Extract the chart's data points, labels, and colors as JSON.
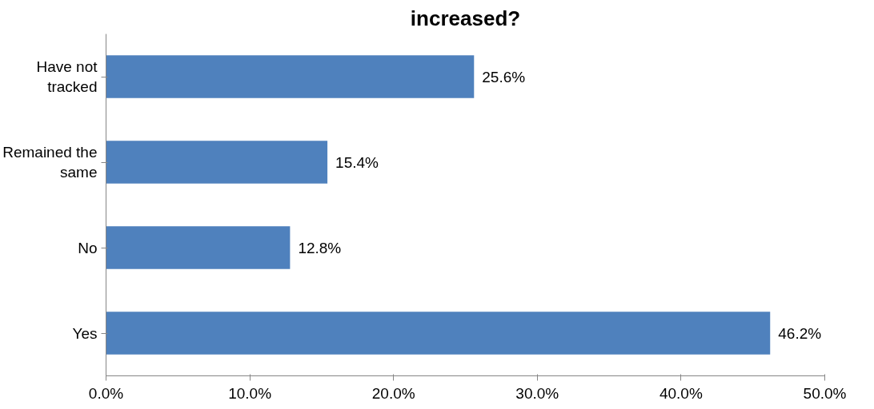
{
  "chart_data": {
    "type": "bar",
    "orientation": "horizontal",
    "title": "increased?",
    "categories": [
      "Have not tracked",
      "Remained the same",
      "No",
      "Yes"
    ],
    "values": [
      25.6,
      15.4,
      12.8,
      46.2
    ],
    "color": "#4f81bd",
    "value_labels": [
      "25.6%",
      "15.4%",
      "12.8%",
      "46.2%"
    ],
    "xlim": [
      0,
      50
    ],
    "xticks": [
      {
        "value": 0,
        "label": "0.0%"
      },
      {
        "value": 10,
        "label": "10.0%"
      },
      {
        "value": 20,
        "label": "20.0%"
      },
      {
        "value": 30,
        "label": "30.0%"
      },
      {
        "value": 40,
        "label": "40.0%"
      },
      {
        "value": 50,
        "label": "50.0%"
      }
    ],
    "grid": false
  }
}
